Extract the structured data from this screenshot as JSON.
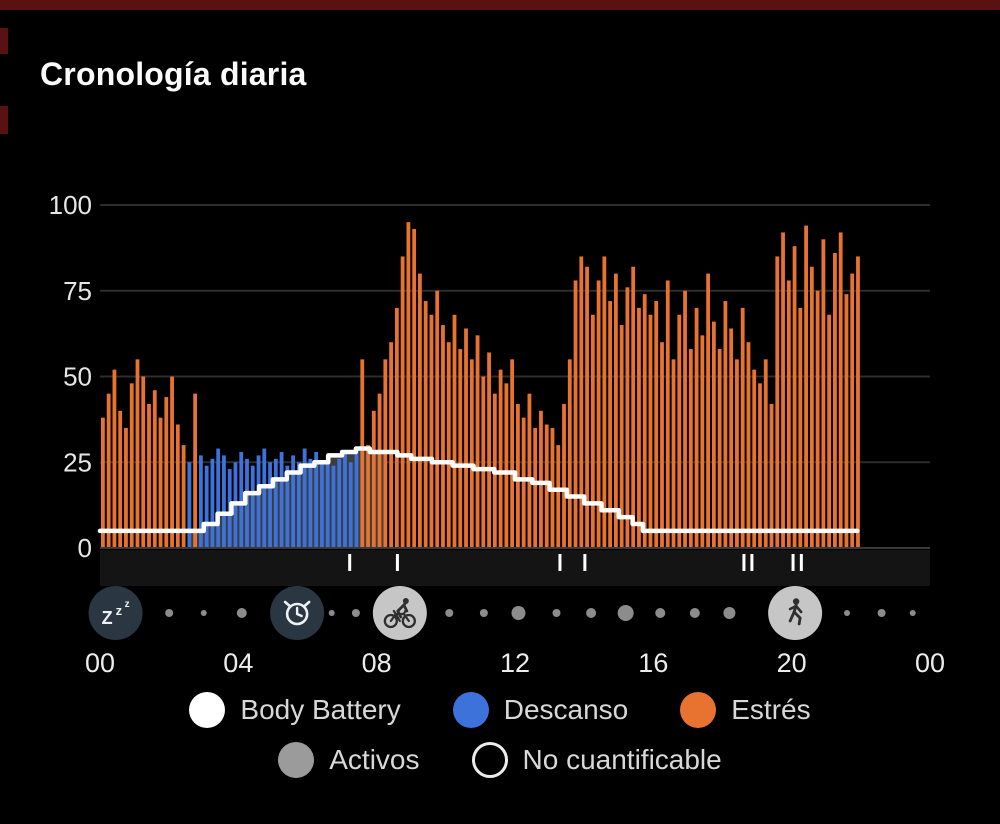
{
  "page": {
    "title": "Cronología diaria"
  },
  "legend": {
    "rows": [
      [
        {
          "slug": "body-battery",
          "label": "Body Battery",
          "swatch": "#FFFFFF"
        },
        {
          "slug": "descanso",
          "label": "Descanso",
          "swatch": "#3D72DB"
        },
        {
          "slug": "estres",
          "label": "Estrés",
          "swatch": "#E8722F"
        }
      ],
      [
        {
          "slug": "activos",
          "label": "Activos",
          "swatch": "#9B9B9B"
        },
        {
          "slug": "no-cuantificable",
          "label": "No cuantificable",
          "swatch": "outline"
        }
      ]
    ]
  },
  "chart_data": {
    "type": "bar",
    "title": "Cronología diaria",
    "x_axis": {
      "unit": "hour",
      "range": [
        0,
        24
      ],
      "tick_hours": [
        0,
        4,
        8,
        12,
        16,
        20,
        24
      ],
      "tick_labels": [
        "00",
        "04",
        "08",
        "12",
        "16",
        "20",
        "00"
      ]
    },
    "y_axis": {
      "range": [
        0,
        100
      ],
      "ticks": [
        0,
        25,
        50,
        75,
        100
      ]
    },
    "bars": {
      "interval_minutes": 10,
      "start_hour": 0,
      "kinds_key": {
        "s": "estres",
        "r": "descanso",
        "-": "none"
      },
      "kind_runs": [
        [
          15,
          "s"
        ],
        [
          1,
          "r"
        ],
        [
          1,
          "s"
        ],
        [
          28,
          "r"
        ],
        [
          87,
          "s"
        ],
        [
          12,
          "-"
        ]
      ],
      "values": [
        38,
        45,
        52,
        40,
        35,
        48,
        55,
        50,
        42,
        46,
        38,
        44,
        50,
        36,
        30,
        25,
        45,
        27,
        24,
        26,
        29,
        27,
        23,
        25,
        28,
        26,
        24,
        27,
        29,
        25,
        26,
        28,
        24,
        27,
        25,
        29,
        26,
        28,
        25,
        27,
        24,
        26,
        28,
        25,
        29,
        55,
        30,
        40,
        45,
        55,
        60,
        70,
        85,
        95,
        93,
        80,
        72,
        68,
        75,
        65,
        60,
        68,
        58,
        64,
        55,
        62,
        50,
        57,
        45,
        52,
        48,
        55,
        42,
        38,
        45,
        35,
        40,
        36,
        35,
        30,
        42,
        55,
        78,
        85,
        82,
        68,
        78,
        85,
        72,
        80,
        65,
        76,
        82,
        70,
        74,
        68,
        72,
        60,
        78,
        55,
        68,
        75,
        58,
        70,
        62,
        80,
        66,
        58,
        72,
        64,
        55,
        70,
        60,
        52,
        48,
        55,
        42,
        85,
        92,
        78,
        88,
        70,
        94,
        82,
        75,
        90,
        68,
        86,
        92,
        74,
        80,
        85,
        0,
        0,
        0,
        0,
        0,
        0,
        0,
        0,
        0,
        0,
        0,
        0
      ]
    },
    "body_battery_line": {
      "color": "#FFFFFF",
      "points": [
        [
          0,
          5
        ],
        [
          2.6,
          5
        ],
        [
          3.0,
          7
        ],
        [
          3.4,
          10
        ],
        [
          3.8,
          13
        ],
        [
          4.2,
          16
        ],
        [
          4.6,
          18
        ],
        [
          5.0,
          20
        ],
        [
          5.4,
          22
        ],
        [
          5.8,
          24
        ],
        [
          6.2,
          25
        ],
        [
          6.6,
          27
        ],
        [
          7.0,
          28
        ],
        [
          7.4,
          29
        ],
        [
          7.8,
          28
        ],
        [
          8.2,
          28
        ],
        [
          8.6,
          27
        ],
        [
          9.0,
          26
        ],
        [
          9.6,
          25
        ],
        [
          10.2,
          24
        ],
        [
          10.8,
          23
        ],
        [
          11.4,
          22
        ],
        [
          12.0,
          20
        ],
        [
          12.5,
          19
        ],
        [
          13.0,
          17
        ],
        [
          13.5,
          15
        ],
        [
          14.0,
          13
        ],
        [
          14.5,
          11
        ],
        [
          15.0,
          9
        ],
        [
          15.4,
          7
        ],
        [
          15.7,
          5
        ],
        [
          21.9,
          5
        ]
      ]
    },
    "sleep_fill": {
      "from_hour": 2.6,
      "to_hour": 8.2,
      "color": "#3D3D3D"
    },
    "event_marker_hours": [
      7.22,
      8.6,
      13.3,
      14.02,
      18.62,
      18.85,
      20.04,
      20.28
    ],
    "icons": [
      {
        "hour": 0.45,
        "type": "sleep",
        "variant": "dark"
      },
      {
        "hour": 5.7,
        "type": "alarm",
        "variant": "dark"
      },
      {
        "hour": 8.67,
        "type": "cycling",
        "variant": "light"
      },
      {
        "hour": 20.1,
        "type": "walking",
        "variant": "light"
      }
    ],
    "dots": [
      [
        2.0,
        4
      ],
      [
        3.0,
        3
      ],
      [
        4.1,
        5
      ],
      [
        6.7,
        3
      ],
      [
        7.4,
        4
      ],
      [
        10.1,
        4
      ],
      [
        11.1,
        4
      ],
      [
        12.1,
        7
      ],
      [
        13.2,
        4
      ],
      [
        14.2,
        5
      ],
      [
        15.2,
        8
      ],
      [
        16.2,
        5
      ],
      [
        17.2,
        5
      ],
      [
        18.2,
        6
      ],
      [
        21.6,
        3
      ],
      [
        22.6,
        4
      ],
      [
        23.5,
        3
      ]
    ],
    "colors": {
      "stress": "#E8722F",
      "rest": "#3D72DB",
      "body_battery": "#FFFFFF",
      "grid": "#2D2D2D",
      "baseline": "#3A3A3A",
      "axis_text": "#E6E6E6",
      "marker_strip": "#141414",
      "dark_icon_bg": "#2A3642",
      "light_icon_bg": "#C6C6C6",
      "icon_glyph_light": "#EDF1F5",
      "icon_glyph_dark": "#2F2F2F",
      "dot": "#8C8C8C"
    }
  }
}
